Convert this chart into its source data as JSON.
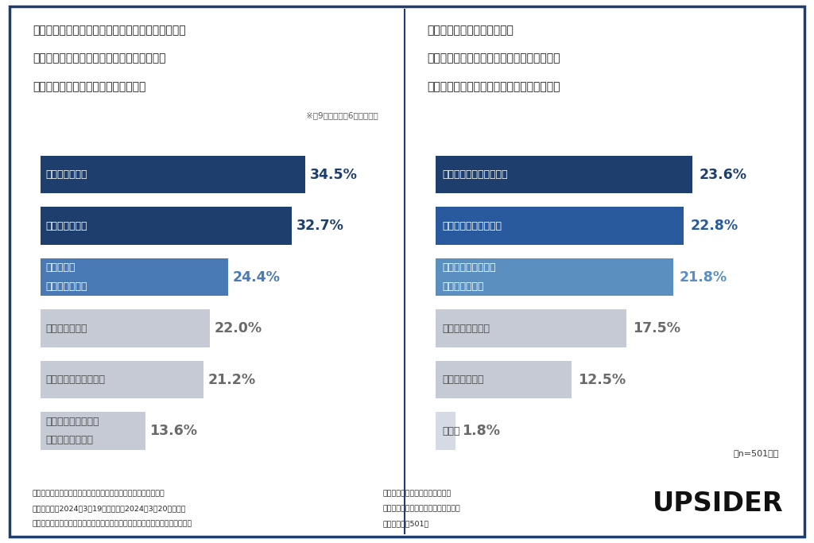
{
  "left_title_lines": [
    "株式上場を目指している企業の方にお聞きします。",
    "株式上場に向けてボトルネックとなっている",
    "ポイントは何ですか？（複数選択可）"
  ],
  "left_note": "※全9項目中上位6項目を抜粋",
  "right_title_lines": [
    "時価総額が低いまま上場する",
    "「小粒上場」の原因になっているものとして",
    "最も強く感じるのは何ですか？（単一選択）"
  ],
  "left_categories": [
    "資金面での課題",
    "経営体制の整備",
    "株式上場は\n目指していない",
    "内部統制の構築",
    "業績の安定性・成長性",
    "市場からの認知度・\nブランドイメージ"
  ],
  "left_values": [
    34.5,
    32.7,
    24.4,
    22.0,
    21.2,
    13.6
  ],
  "left_colors": [
    "#1e3f6e",
    "#1e3f6e",
    "#4a7ab5",
    "#c5cad4",
    "#c5cad4",
    "#c5cad4"
  ],
  "left_label_colors": [
    "#ffffff",
    "#ffffff",
    "#ffffff",
    "#4a4a4a",
    "#4a4a4a",
    "#4a4a4a"
  ],
  "left_pct_colors": [
    "#1e3f6e",
    "#1e3f6e",
    "#4a7ab5",
    "#6a6a6a",
    "#6a6a6a",
    "#6a6a6a"
  ],
  "right_categories": [
    "大型の資金調達が難しい",
    "資金の出し手が少ない",
    "適切なタイミングの\n見極めが難しい",
    "投資家の関心不足",
    "経済環境の変化",
    "その他"
  ],
  "right_values": [
    23.6,
    22.8,
    21.8,
    17.5,
    12.5,
    1.8
  ],
  "right_colors": [
    "#1e3f6e",
    "#2a5a9e",
    "#5a8fc0",
    "#c5cad4",
    "#c5cad4",
    "#d5dae4"
  ],
  "right_label_colors": [
    "#ffffff",
    "#ffffff",
    "#ffffff",
    "#4a4a4a",
    "#4a4a4a",
    "#4a4a4a"
  ],
  "right_pct_colors": [
    "#1e3f6e",
    "#2a5a9e",
    "#5a8fc0",
    "#6a6a6a",
    "#6a6a6a",
    "#6a6a6a"
  ],
  "n_label": "（n=501人）",
  "footer_left1": "《調査概要：「スタートアップ企業の資金調達」に関する調査》",
  "footer_left2": "・調査期間：2024年3月19日（火）〜2024年3月20日（水）",
  "footer_left3": "・調査対象：調査回答時にスタートアップの経営者であると回答したモニター",
  "footer_right1": "・調査方法：インターネット調査",
  "footer_right2": "・モニター提供元：ゼネラルリサーチ",
  "footer_right3": "・調査人数：501人",
  "brand": "UPSIDER",
  "bg_color": "#ffffff",
  "border_color": "#1e3f6e"
}
